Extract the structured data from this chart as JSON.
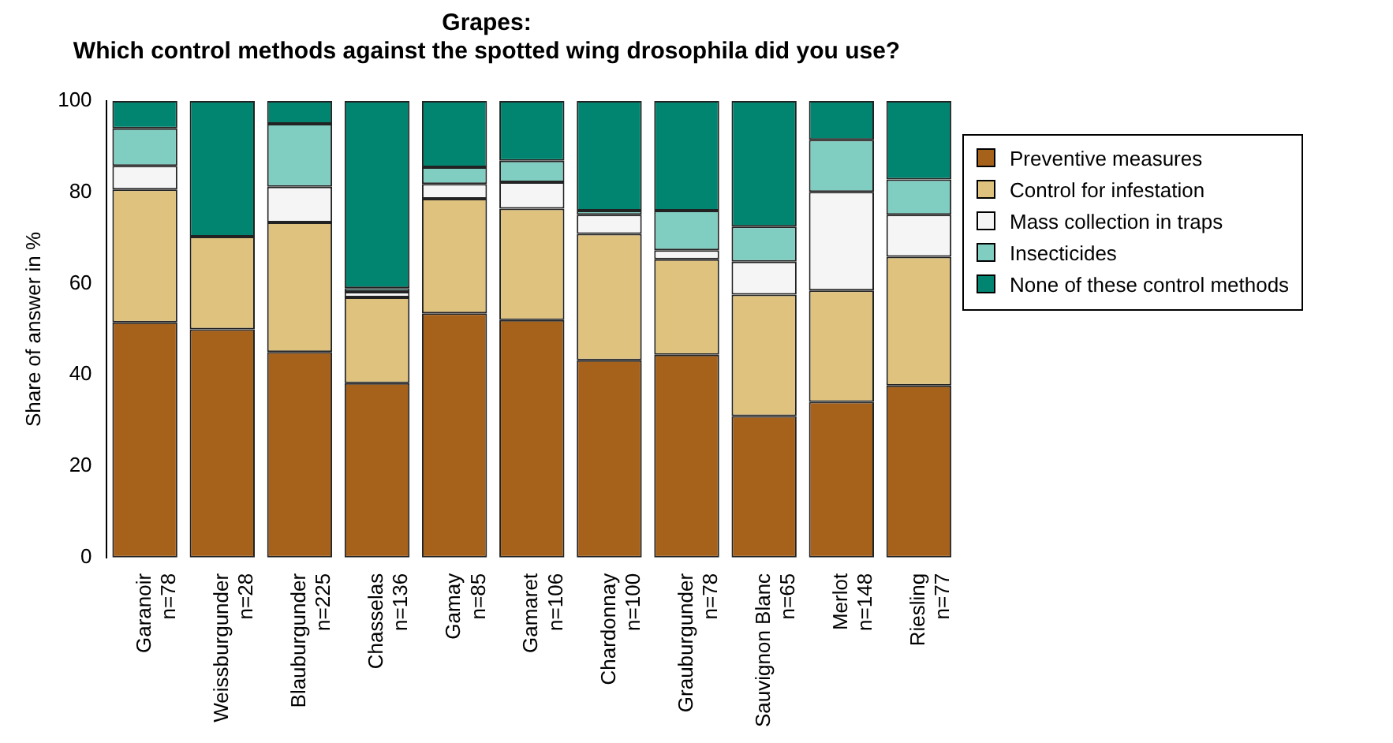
{
  "chart_data": {
    "type": "bar",
    "stacked": true,
    "title": "Grapes:\nWhich control methods against the spotted wing drosophila did you use?",
    "ylabel": "Share of answer in %",
    "categories": [
      "Garanoir\nn=78",
      "Weissburgunder\nn=28",
      "Blauburgunder\nn=225",
      "Chasselas\nn=136",
      "Gamay\nn=85",
      "Gamaret\nn=106",
      "Chardonnay\nn=100",
      "Grauburgunder\nn=78",
      "Sauvignon Blanc\nn=65",
      "Merlot\nn=148",
      "Riesling\nn=77"
    ],
    "series": [
      {
        "name": "Preventive measures",
        "color": "#a6611a",
        "values": [
          51.5,
          50.0,
          45.0,
          38.2,
          53.5,
          52.0,
          43.2,
          44.4,
          31.0,
          34.1,
          37.7
        ]
      },
      {
        "name": "Control for infestation",
        "color": "#dfc27d",
        "values": [
          29.1,
          20.3,
          28.4,
          18.8,
          25.1,
          24.4,
          27.7,
          20.9,
          26.6,
          24.4,
          28.2
        ]
      },
      {
        "name": "Mass collection in traps",
        "color": "#f5f5f5",
        "values": [
          5.2,
          0,
          7.8,
          1.2,
          3.2,
          5.8,
          4.2,
          2.0,
          7.2,
          21.6,
          9.2
        ]
      },
      {
        "name": "Insecticides",
        "color": "#80cdc1",
        "values": [
          8.2,
          0,
          13.8,
          0.8,
          3.7,
          4.7,
          0.9,
          8.7,
          7.7,
          11.4,
          7.7
        ]
      },
      {
        "name": "None of these control methods",
        "color": "#018571",
        "values": [
          6.0,
          29.7,
          5.0,
          41.0,
          14.5,
          13.1,
          24.0,
          24.0,
          27.5,
          8.5,
          17.2
        ]
      }
    ],
    "ylim": [
      0,
      100
    ],
    "yticks": [
      0,
      20,
      40,
      60,
      80,
      100
    ],
    "grid": false,
    "legend": "right"
  }
}
